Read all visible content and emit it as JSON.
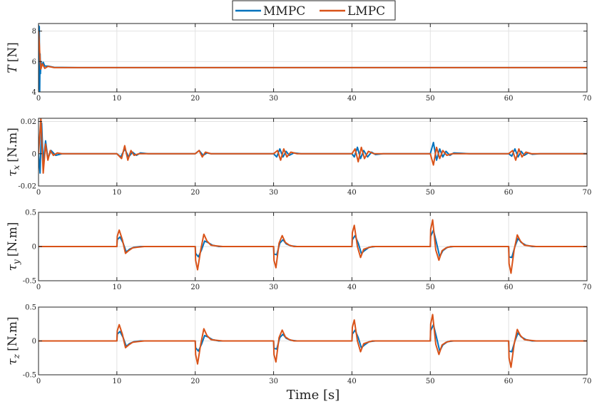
{
  "colors": {
    "MMPC": "#0072BD",
    "LMPC": "#D95319"
  },
  "legend": {
    "entries": [
      "MMPC",
      "LMPC"
    ],
    "position": "top-center"
  },
  "chart_data": [
    {
      "type": "line",
      "ylabel_symbol": "T",
      "ylabel_sub": "",
      "ylabel_unit": "[N]",
      "xlim": [
        0,
        70
      ],
      "ylim": [
        4,
        8.5
      ],
      "xticks": [
        0,
        10,
        20,
        30,
        40,
        50,
        60,
        70
      ],
      "yticks": [
        4,
        6,
        8
      ],
      "ytick_labels": [
        "4",
        "6",
        "8"
      ],
      "grid": true,
      "series": [
        {
          "name": "MMPC",
          "x": [
            0,
            0.05,
            0.1,
            0.15,
            0.2,
            0.25,
            0.3,
            0.4,
            0.6,
            0.8,
            1.2,
            2,
            5,
            10,
            20,
            30,
            40,
            50,
            60,
            70
          ],
          "values": [
            8.4,
            4.2,
            8.3,
            4.0,
            6.5,
            5.2,
            6.0,
            5.7,
            5.95,
            5.7,
            5.7,
            5.62,
            5.6,
            5.6,
            5.6,
            5.6,
            5.6,
            5.6,
            5.6,
            5.6
          ]
        },
        {
          "name": "LMPC",
          "x": [
            0,
            0.1,
            0.2,
            0.3,
            0.5,
            0.8,
            1.2,
            2,
            5,
            10,
            20,
            30,
            40,
            50,
            60,
            70
          ],
          "values": [
            8.0,
            7.2,
            6.1,
            5.5,
            5.85,
            5.55,
            5.68,
            5.6,
            5.6,
            5.6,
            5.6,
            5.6,
            5.6,
            5.6,
            5.6,
            5.6
          ]
        }
      ]
    },
    {
      "type": "line",
      "ylabel_symbol": "τ",
      "ylabel_sub": "x",
      "ylabel_unit": "[N.m]",
      "xlim": [
        0,
        70
      ],
      "ylim": [
        -0.02,
        0.022
      ],
      "xticks": [
        0,
        10,
        20,
        30,
        40,
        50,
        60,
        70
      ],
      "yticks": [
        -0.02,
        0,
        0.02
      ],
      "ytick_labels": [
        "-0.02",
        "0",
        "0.02"
      ],
      "grid": true,
      "series": [
        {
          "name": "MMPC",
          "x": [
            0,
            0.2,
            0.4,
            0.6,
            0.9,
            1.2,
            1.6,
            2.2,
            3,
            10,
            10.5,
            11,
            11.5,
            12,
            12.5,
            13,
            14,
            20,
            20.5,
            21,
            21.5,
            22,
            23,
            30,
            30.4,
            30.8,
            31.2,
            31.6,
            32,
            32.6,
            33.5,
            40,
            40.3,
            40.7,
            41.1,
            41.5,
            42,
            42.5,
            43,
            44,
            50,
            50.4,
            50.8,
            51.2,
            51.6,
            52,
            52.5,
            53,
            54,
            55,
            60,
            60.4,
            60.8,
            61.2,
            61.6,
            62,
            62.5,
            63,
            64,
            70
          ],
          "values": [
            0,
            -0.012,
            0.019,
            -0.006,
            0.008,
            -0.003,
            0.002,
            -0.001,
            0,
            0,
            -0.002,
            0.003,
            -0.002,
            0.001,
            -0.001,
            0.0005,
            0,
            0,
            0.002,
            -0.001,
            0.0005,
            0,
            0,
            0,
            -0.002,
            0.003,
            -0.002,
            0.0015,
            -0.001,
            0.0005,
            0,
            0,
            -0.002,
            0.004,
            -0.003,
            0.002,
            -0.002,
            0.001,
            -0.0005,
            0,
            0,
            0.007,
            -0.004,
            0.003,
            -0.002,
            0.0015,
            -0.001,
            0.0005,
            0.0003,
            0,
            0,
            -0.0015,
            0.003,
            -0.002,
            0.0015,
            -0.001,
            0.0005,
            -0.0003,
            0,
            0
          ]
        },
        {
          "name": "LMPC",
          "x": [
            0,
            0.3,
            0.6,
            0.9,
            1.2,
            1.5,
            1.9,
            2.4,
            3,
            10,
            10.6,
            11,
            11.4,
            11.8,
            12.2,
            12.8,
            20,
            20.5,
            20.9,
            21.3,
            22,
            30,
            30.5,
            30.9,
            31.3,
            31.7,
            32.2,
            33,
            40,
            40.4,
            40.8,
            41.2,
            41.6,
            42.1,
            42.8,
            50,
            50.4,
            50.8,
            51.2,
            51.6,
            52.1,
            52.8,
            60,
            60.5,
            60.9,
            61.3,
            61.7,
            62.2,
            62.9,
            70
          ],
          "values": [
            0,
            0.022,
            -0.012,
            0.006,
            -0.004,
            0.002,
            -0.001,
            0.0005,
            0,
            0,
            -0.003,
            0.005,
            -0.004,
            0.002,
            -0.001,
            0,
            0,
            0.002,
            -0.002,
            0.001,
            0,
            0,
            0.002,
            -0.004,
            0.003,
            -0.002,
            0.001,
            0,
            0,
            0.003,
            -0.005,
            0.004,
            -0.003,
            0.0015,
            0,
            0,
            -0.007,
            0.004,
            -0.003,
            0.002,
            -0.001,
            0,
            0,
            0.002,
            -0.004,
            0.003,
            -0.002,
            0.001,
            0,
            0
          ]
        }
      ]
    },
    {
      "type": "line",
      "ylabel_symbol": "τ",
      "ylabel_sub": "y",
      "ylabel_unit": "[N.m]",
      "xlim": [
        0,
        70
      ],
      "ylim": [
        -0.5,
        0.5
      ],
      "xticks": [
        0,
        10,
        20,
        30,
        40,
        50,
        60,
        70
      ],
      "yticks": [
        -0.5,
        0,
        0.5
      ],
      "ytick_labels": [
        "-0.5",
        "0",
        "0.5"
      ],
      "grid": true,
      "series": [
        {
          "name": "MMPC",
          "x": [
            0,
            10,
            10.05,
            10.4,
            10.8,
            11.2,
            11.6,
            12.2,
            13,
            20,
            20.05,
            20.4,
            20.8,
            21.2,
            21.6,
            22.2,
            23,
            30,
            30.05,
            30.4,
            30.8,
            31.2,
            31.6,
            32.2,
            33,
            40,
            40.05,
            40.4,
            40.8,
            41.2,
            41.6,
            42.2,
            43,
            50,
            50.05,
            50.4,
            50.8,
            51.2,
            51.6,
            52.2,
            53,
            60,
            60.05,
            60.4,
            60.8,
            61.2,
            61.6,
            62.2,
            63,
            70
          ],
          "values": [
            0,
            0,
            0.1,
            0.14,
            0.05,
            -0.08,
            -0.04,
            -0.01,
            0,
            0,
            -0.1,
            -0.15,
            -0.05,
            0.08,
            0.06,
            0.02,
            0,
            0,
            -0.11,
            -0.12,
            0.05,
            0.1,
            0.04,
            0.01,
            0,
            0,
            0.1,
            0.16,
            0.05,
            -0.1,
            -0.06,
            -0.01,
            0,
            0,
            0.15,
            0.24,
            0.05,
            -0.15,
            -0.06,
            -0.01,
            0,
            0,
            -0.15,
            -0.16,
            0.0,
            0.12,
            0.06,
            0.02,
            0,
            0
          ]
        },
        {
          "name": "LMPC",
          "x": [
            0,
            10,
            10.05,
            10.3,
            10.7,
            11.1,
            11.5,
            12,
            12.6,
            13.5,
            20,
            20.05,
            20.3,
            20.7,
            21.1,
            21.5,
            22,
            22.6,
            23.5,
            30,
            30.05,
            30.3,
            30.7,
            31.1,
            31.5,
            32,
            32.6,
            33.5,
            40,
            40.05,
            40.3,
            40.7,
            41.1,
            41.5,
            42,
            42.6,
            43.5,
            50,
            50.05,
            50.3,
            50.7,
            51.1,
            51.5,
            52,
            52.6,
            53.5,
            60,
            60.05,
            60.3,
            60.7,
            61.1,
            61.5,
            62,
            62.6,
            63.5,
            70
          ],
          "values": [
            0,
            0,
            0.15,
            0.24,
            0.1,
            -0.1,
            -0.06,
            -0.02,
            -0.01,
            0,
            0,
            -0.2,
            -0.34,
            -0.05,
            0.18,
            0.08,
            0.02,
            0.01,
            0,
            0,
            -0.2,
            -0.31,
            0.05,
            0.16,
            0.06,
            0.02,
            0,
            0,
            0,
            0.2,
            0.31,
            0.0,
            -0.16,
            -0.04,
            -0.02,
            0,
            0,
            0,
            0.25,
            0.39,
            -0.05,
            -0.2,
            -0.06,
            -0.02,
            0,
            0,
            0,
            -0.25,
            -0.39,
            -0.05,
            0.17,
            0.08,
            0.02,
            0.01,
            0,
            0
          ]
        }
      ]
    },
    {
      "type": "line",
      "ylabel_symbol": "τ",
      "ylabel_sub": "z",
      "ylabel_unit": "[N.m]",
      "xlim": [
        0,
        70
      ],
      "ylim": [
        -0.5,
        0.5
      ],
      "xticks": [
        0,
        10,
        20,
        30,
        40,
        50,
        60,
        70
      ],
      "yticks": [
        -0.5,
        0,
        0.5
      ],
      "ytick_labels": [
        "-0.5",
        "0",
        "0.5"
      ],
      "grid": true,
      "series": [
        {
          "name": "MMPC",
          "x": [
            0,
            10,
            10.05,
            10.4,
            10.8,
            11.2,
            11.6,
            12.2,
            13,
            20,
            20.05,
            20.4,
            20.8,
            21.2,
            21.6,
            22.2,
            23,
            30,
            30.05,
            30.4,
            30.8,
            31.2,
            31.6,
            32.2,
            33,
            40,
            40.05,
            40.4,
            40.8,
            41.2,
            41.6,
            42.2,
            43,
            50,
            50.05,
            50.4,
            50.8,
            51.2,
            51.6,
            52.2,
            53,
            60,
            60.05,
            60.4,
            60.8,
            61.2,
            61.6,
            62.2,
            63,
            70
          ],
          "values": [
            0,
            0,
            0.1,
            0.14,
            0.05,
            -0.08,
            -0.04,
            -0.01,
            0,
            0,
            -0.1,
            -0.15,
            -0.05,
            0.08,
            0.06,
            0.02,
            0,
            0,
            -0.11,
            -0.12,
            0.05,
            0.1,
            0.04,
            0.01,
            0,
            0,
            0.1,
            0.16,
            0.05,
            -0.1,
            -0.06,
            -0.01,
            0,
            0,
            0.15,
            0.24,
            0.05,
            -0.15,
            -0.06,
            -0.01,
            0,
            0,
            -0.15,
            -0.16,
            0.0,
            0.12,
            0.06,
            0.02,
            0,
            0
          ]
        },
        {
          "name": "LMPC",
          "x": [
            0,
            10,
            10.05,
            10.3,
            10.7,
            11.1,
            11.5,
            12,
            12.6,
            13.5,
            20,
            20.05,
            20.3,
            20.7,
            21.1,
            21.5,
            22,
            22.6,
            23.5,
            30,
            30.05,
            30.3,
            30.7,
            31.1,
            31.5,
            32,
            32.6,
            33.5,
            40,
            40.05,
            40.3,
            40.7,
            41.1,
            41.5,
            42,
            42.6,
            43.5,
            50,
            50.05,
            50.3,
            50.7,
            51.1,
            51.5,
            52,
            52.6,
            53.5,
            60,
            60.05,
            60.3,
            60.7,
            61.1,
            61.5,
            62,
            62.6,
            63.5,
            70
          ],
          "values": [
            0,
            0,
            0.15,
            0.24,
            0.1,
            -0.1,
            -0.06,
            -0.02,
            -0.01,
            0,
            0,
            -0.2,
            -0.34,
            -0.05,
            0.18,
            0.08,
            0.02,
            0.01,
            0,
            0,
            -0.2,
            -0.31,
            0.05,
            0.16,
            0.06,
            0.02,
            0,
            0,
            0,
            0.2,
            0.31,
            0.0,
            -0.16,
            -0.04,
            -0.02,
            0,
            0,
            0,
            0.25,
            0.39,
            -0.05,
            -0.2,
            -0.06,
            -0.02,
            0,
            0,
            0,
            -0.25,
            -0.39,
            -0.05,
            0.17,
            0.08,
            0.02,
            0.01,
            0,
            0
          ]
        }
      ]
    }
  ],
  "xlabel": "Time [s]"
}
